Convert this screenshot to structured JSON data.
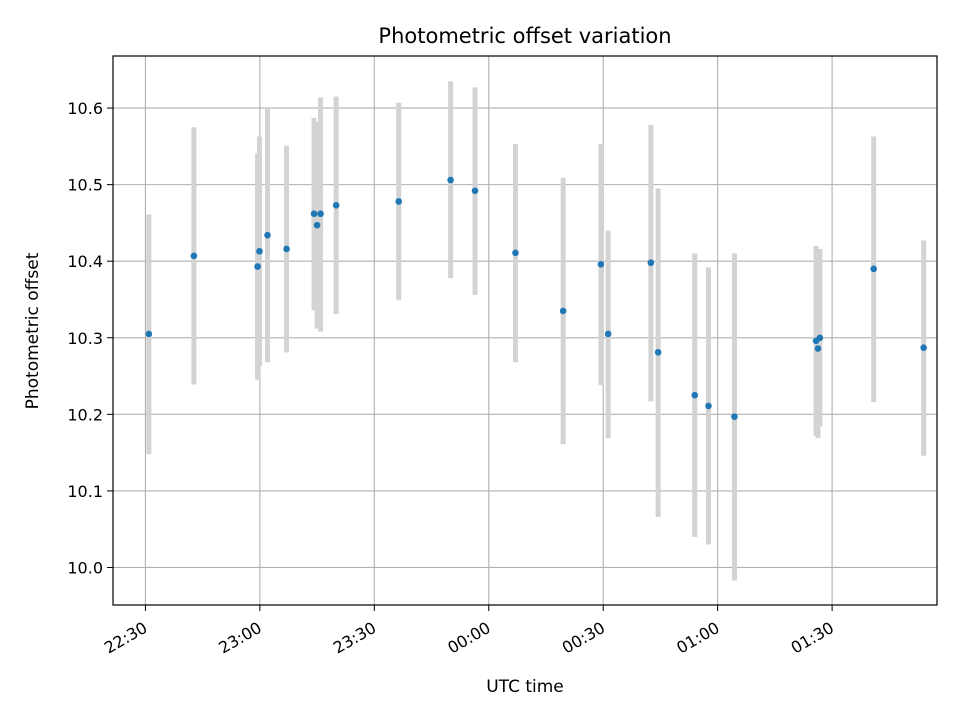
{
  "chart_data": {
    "type": "scatter",
    "title": "Photometric offset variation",
    "xlabel": "UTC time",
    "ylabel": "Photometric offset",
    "x_ticks": [
      {
        "value": -90,
        "label": "22:30"
      },
      {
        "value": -60,
        "label": "23:00"
      },
      {
        "value": -30,
        "label": "23:30"
      },
      {
        "value": 0,
        "label": "00:00"
      },
      {
        "value": 30,
        "label": "00:30"
      },
      {
        "value": 60,
        "label": "01:00"
      },
      {
        "value": 90,
        "label": "01:30"
      }
    ],
    "y_ticks": [
      {
        "value": 10.0,
        "label": "10.0"
      },
      {
        "value": 10.1,
        "label": "10.1"
      },
      {
        "value": 10.2,
        "label": "10.2"
      },
      {
        "value": 10.3,
        "label": "10.3"
      },
      {
        "value": 10.4,
        "label": "10.4"
      },
      {
        "value": 10.5,
        "label": "10.5"
      },
      {
        "value": 10.6,
        "label": "10.6"
      }
    ],
    "xlim": [
      -98.5,
      117.5
    ],
    "ylim": [
      9.951,
      10.668
    ],
    "grid": true,
    "colors": {
      "point": "#1f77b4",
      "errorbar": "#d3d3d3",
      "grid": "#b0b0b0"
    },
    "points": [
      {
        "x": -89.1,
        "y": 10.305,
        "low": 10.148,
        "high": 10.461
      },
      {
        "x": -77.3,
        "y": 10.407,
        "low": 10.239,
        "high": 10.575
      },
      {
        "x": -60.6,
        "y": 10.393,
        "low": 10.245,
        "high": 10.541
      },
      {
        "x": -60.1,
        "y": 10.413,
        "low": 10.263,
        "high": 10.563
      },
      {
        "x": -58.0,
        "y": 10.434,
        "low": 10.268,
        "high": 10.6
      },
      {
        "x": -53.0,
        "y": 10.416,
        "low": 10.281,
        "high": 10.551
      },
      {
        "x": -45.8,
        "y": 10.462,
        "low": 10.336,
        "high": 10.587
      },
      {
        "x": -45.0,
        "y": 10.447,
        "low": 10.312,
        "high": 10.582
      },
      {
        "x": -44.1,
        "y": 10.462,
        "low": 10.308,
        "high": 10.614
      },
      {
        "x": -40.0,
        "y": 10.473,
        "low": 10.331,
        "high": 10.615
      },
      {
        "x": -23.6,
        "y": 10.478,
        "low": 10.349,
        "high": 10.607
      },
      {
        "x": -10.0,
        "y": 10.506,
        "low": 10.378,
        "high": 10.635
      },
      {
        "x": -3.6,
        "y": 10.492,
        "low": 10.356,
        "high": 10.627
      },
      {
        "x": 7.0,
        "y": 10.411,
        "low": 10.268,
        "high": 10.553
      },
      {
        "x": 19.5,
        "y": 10.335,
        "low": 10.161,
        "high": 10.509
      },
      {
        "x": 29.4,
        "y": 10.396,
        "low": 10.238,
        "high": 10.553
      },
      {
        "x": 31.3,
        "y": 10.305,
        "low": 10.169,
        "high": 10.44
      },
      {
        "x": 42.5,
        "y": 10.398,
        "low": 10.217,
        "high": 10.578
      },
      {
        "x": 44.4,
        "y": 10.281,
        "low": 10.066,
        "high": 10.495
      },
      {
        "x": 54.0,
        "y": 10.225,
        "low": 10.04,
        "high": 10.41
      },
      {
        "x": 57.6,
        "y": 10.211,
        "low": 10.03,
        "high": 10.392
      },
      {
        "x": 64.4,
        "y": 10.197,
        "low": 9.983,
        "high": 10.41
      },
      {
        "x": 85.8,
        "y": 10.296,
        "low": 10.172,
        "high": 10.42
      },
      {
        "x": 86.3,
        "y": 10.286,
        "low": 10.169,
        "high": 10.403
      },
      {
        "x": 86.8,
        "y": 10.3,
        "low": 10.184,
        "high": 10.416
      },
      {
        "x": 100.9,
        "y": 10.39,
        "low": 10.216,
        "high": 10.563
      },
      {
        "x": 114.0,
        "y": 10.287,
        "low": 10.146,
        "high": 10.427
      }
    ]
  }
}
